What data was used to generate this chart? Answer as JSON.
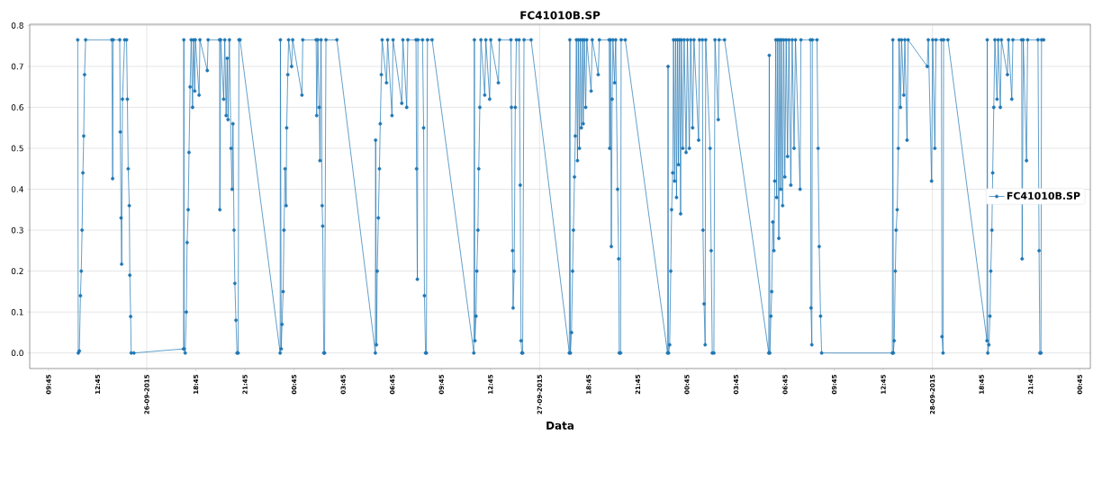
{
  "chart_data": {
    "type": "line",
    "title": "FC41010B.SP",
    "xlabel": "Data",
    "xlim": [
      "2015-09-26T08:36",
      "2015-09-29T01:24"
    ],
    "ylim": [
      -0.038,
      0.803
    ],
    "xticks": [
      {
        "value": "2015-09-26T09:45",
        "label": "09:45"
      },
      {
        "value": "2015-09-26T12:45",
        "label": "12:45"
      },
      {
        "value": "2015-09-26T15:45",
        "label": "26-09-2015"
      },
      {
        "value": "2015-09-26T18:45",
        "label": "18:45"
      },
      {
        "value": "2015-09-26T21:45",
        "label": "21:45"
      },
      {
        "value": "2015-09-27T00:45",
        "label": "00:45"
      },
      {
        "value": "2015-09-27T03:45",
        "label": "03:45"
      },
      {
        "value": "2015-09-27T06:45",
        "label": "06:45"
      },
      {
        "value": "2015-09-27T09:45",
        "label": "09:45"
      },
      {
        "value": "2015-09-27T12:45",
        "label": "12:45"
      },
      {
        "value": "2015-09-27T15:45",
        "label": "27-09-2015"
      },
      {
        "value": "2015-09-27T18:45",
        "label": "18:45"
      },
      {
        "value": "2015-09-27T21:45",
        "label": "21:45"
      },
      {
        "value": "2015-09-28T00:45",
        "label": "00:45"
      },
      {
        "value": "2015-09-28T03:45",
        "label": "03:45"
      },
      {
        "value": "2015-09-28T06:45",
        "label": "06:45"
      },
      {
        "value": "2015-09-28T09:45",
        "label": "09:45"
      },
      {
        "value": "2015-09-28T12:45",
        "label": "12:45"
      },
      {
        "value": "2015-09-28T15:45",
        "label": "28-09-2015"
      },
      {
        "value": "2015-09-28T18:45",
        "label": "18:45"
      },
      {
        "value": "2015-09-28T21:45",
        "label": "21:45"
      },
      {
        "value": "2015-09-29T00:45",
        "label": "00:45"
      }
    ],
    "yticks": [
      {
        "value": 0,
        "label": "0.0"
      },
      {
        "value": 0.1,
        "label": "0.1"
      },
      {
        "value": 0.2,
        "label": "0.2"
      },
      {
        "value": 0.3,
        "label": "0.3"
      },
      {
        "value": 0.4,
        "label": "0.4"
      },
      {
        "value": 0.5,
        "label": "0.5"
      },
      {
        "value": 0.6,
        "label": "0.6"
      },
      {
        "value": 0.7,
        "label": "0.7"
      },
      {
        "value": 0.8,
        "label": "0.8"
      }
    ],
    "grid": true,
    "legend": "right",
    "marker": "circle",
    "line_style": "solid",
    "x": [
      "2015-09-26T11:32",
      "2015-09-26T11:34",
      "2015-09-26T11:38",
      "2015-09-26T11:42",
      "2015-09-26T11:45",
      "2015-09-26T11:48",
      "2015-09-26T11:51",
      "2015-09-26T11:54",
      "2015-09-26T11:57",
      "2015-09-26T12:01",
      "2015-09-26T13:37",
      "2015-09-26T13:40",
      "2015-09-26T13:42",
      "2015-09-26T14:06",
      "2015-09-26T14:08",
      "2015-09-26T14:11",
      "2015-09-26T14:13",
      "2015-09-26T14:16",
      "2015-09-26T14:24",
      "2015-09-26T14:31",
      "2015-09-26T14:34",
      "2015-09-26T14:37",
      "2015-09-26T14:41",
      "2015-09-26T14:43",
      "2015-09-26T14:46",
      "2015-09-26T14:48",
      "2015-09-26T14:58",
      "2015-09-26T18:00",
      "2015-09-26T18:01",
      "2015-09-26T18:02",
      "2015-09-26T18:06",
      "2015-09-26T18:10",
      "2015-09-26T18:13",
      "2015-09-26T18:17",
      "2015-09-26T18:20",
      "2015-09-26T18:24",
      "2015-09-26T18:28",
      "2015-09-26T18:33",
      "2015-09-26T18:36",
      "2015-09-26T18:41",
      "2015-09-26T18:43",
      "2015-09-26T18:57",
      "2015-09-26T19:00",
      "2015-09-26T19:27",
      "2015-09-26T19:30",
      "2015-09-26T20:12",
      "2015-09-26T20:13",
      "2015-09-26T20:16",
      "2015-09-26T20:27",
      "2015-09-26T20:31",
      "2015-09-26T20:36",
      "2015-09-26T20:40",
      "2015-09-26T20:43",
      "2015-09-26T20:48",
      "2015-09-26T20:54",
      "2015-09-26T20:58",
      "2015-09-26T21:01",
      "2015-09-26T21:05",
      "2015-09-26T21:08",
      "2015-09-26T21:12",
      "2015-09-26T21:16",
      "2015-09-26T21:20",
      "2015-09-26T21:23",
      "2015-09-26T21:27",
      "2015-09-26T23:54",
      "2015-09-26T23:55",
      "2015-09-26T23:58",
      "2015-09-27T00:01",
      "2015-09-27T00:05",
      "2015-09-27T00:08",
      "2015-09-27T00:12",
      "2015-09-27T00:16",
      "2015-09-27T00:18",
      "2015-09-27T00:22",
      "2015-09-27T00:25",
      "2015-09-27T00:36",
      "2015-09-27T00:40",
      "2015-09-27T01:14",
      "2015-09-27T01:17",
      "2015-09-27T02:06",
      "2015-09-27T02:08",
      "2015-09-27T02:12",
      "2015-09-27T02:17",
      "2015-09-27T02:20",
      "2015-09-27T02:24",
      "2015-09-27T02:28",
      "2015-09-27T02:30",
      "2015-09-27T02:34",
      "2015-09-27T02:37",
      "2015-09-27T02:42",
      "2015-09-27T03:22",
      "2015-09-27T05:43",
      "2015-09-27T05:44",
      "2015-09-27T05:47",
      "2015-09-27T05:50",
      "2015-09-27T05:54",
      "2015-09-27T05:58",
      "2015-09-27T06:01",
      "2015-09-27T06:05",
      "2015-09-27T06:08",
      "2015-09-27T06:24",
      "2015-09-27T06:28",
      "2015-09-27T06:44",
      "2015-09-27T06:48",
      "2015-09-27T07:20",
      "2015-09-27T07:24",
      "2015-09-27T07:38",
      "2015-09-27T07:42",
      "2015-09-27T08:12",
      "2015-09-27T08:14",
      "2015-09-27T08:17",
      "2015-09-27T08:19",
      "2015-09-27T08:36",
      "2015-09-27T08:40",
      "2015-09-27T08:43",
      "2015-09-27T08:47",
      "2015-09-27T08:50",
      "2015-09-27T08:54",
      "2015-09-27T09:11",
      "2015-09-27T11:44",
      "2015-09-27T11:46",
      "2015-09-27T11:48",
      "2015-09-27T11:52",
      "2015-09-27T11:55",
      "2015-09-27T11:59",
      "2015-09-27T12:02",
      "2015-09-27T12:06",
      "2015-09-27T12:10",
      "2015-09-27T12:24",
      "2015-09-27T12:28",
      "2015-09-27T12:42",
      "2015-09-27T12:46",
      "2015-09-27T13:14",
      "2015-09-27T13:18",
      "2015-09-27T14:00",
      "2015-09-27T14:02",
      "2015-09-27T14:06",
      "2015-09-27T14:08",
      "2015-09-27T14:12",
      "2015-09-27T14:16",
      "2015-09-27T14:20",
      "2015-09-27T14:30",
      "2015-09-27T14:34",
      "2015-09-27T14:37",
      "2015-09-27T14:40",
      "2015-09-27T14:43",
      "2015-09-27T14:48",
      "2015-09-27T15:14",
      "2015-09-27T17:34",
      "2015-09-27T17:36",
      "2015-09-27T17:38",
      "2015-09-27T17:42",
      "2015-09-27T17:46",
      "2015-09-27T17:49",
      "2015-09-27T17:53",
      "2015-09-27T17:56",
      "2015-09-27T18:00",
      "2015-09-27T18:04",
      "2015-09-27T18:07",
      "2015-09-27T18:11",
      "2015-09-27T18:14",
      "2015-09-27T18:18",
      "2015-09-27T18:22",
      "2015-09-27T18:25",
      "2015-09-27T18:29",
      "2015-09-27T18:34",
      "2015-09-27T18:38",
      "2015-09-27T18:54",
      "2015-09-27T18:58",
      "2015-09-27T19:20",
      "2015-09-27T19:24",
      "2015-09-27T20:00",
      "2015-09-27T20:02",
      "2015-09-27T20:05",
      "2015-09-27T20:08",
      "2015-09-27T20:11",
      "2015-09-27T20:14",
      "2015-09-27T20:20",
      "2015-09-27T20:24",
      "2015-09-27T20:31",
      "2015-09-27T20:35",
      "2015-09-27T20:37",
      "2015-09-27T20:42",
      "2015-09-27T20:44",
      "2015-09-27T20:59",
      "2015-09-27T23:34",
      "2015-09-27T23:36",
      "2015-09-27T23:38",
      "2015-09-27T23:42",
      "2015-09-27T23:46",
      "2015-09-27T23:49",
      "2015-09-27T23:53",
      "2015-09-27T23:56",
      "2015-09-28T00:00",
      "2015-09-28T00:04",
      "2015-09-28T00:07",
      "2015-09-28T00:11",
      "2015-09-28T00:14",
      "2015-09-28T00:18",
      "2015-09-28T00:22",
      "2015-09-28T00:25",
      "2015-09-28T00:30",
      "2015-09-28T00:35",
      "2015-09-28T00:42",
      "2015-09-28T00:47",
      "2015-09-28T00:54",
      "2015-09-28T00:59",
      "2015-09-28T01:06",
      "2015-09-28T01:11",
      "2015-09-28T01:28",
      "2015-09-28T01:31",
      "2015-09-28T01:42",
      "2015-09-28T01:44",
      "2015-09-28T01:48",
      "2015-09-28T01:52",
      "2015-09-28T01:54",
      "2015-09-28T02:10",
      "2015-09-28T02:14",
      "2015-09-28T02:18",
      "2015-09-28T02:24",
      "2015-09-28T02:28",
      "2015-09-28T02:40",
      "2015-09-28T02:43",
      "2015-09-28T03:03",
      "2015-09-28T05:45",
      "2015-09-28T05:47",
      "2015-09-28T05:49",
      "2015-09-28T05:53",
      "2015-09-28T05:56",
      "2015-09-28T06:00",
      "2015-09-28T06:04",
      "2015-09-28T06:07",
      "2015-09-28T06:11",
      "2015-09-28T06:14",
      "2015-09-28T06:18",
      "2015-09-28T06:22",
      "2015-09-28T06:25",
      "2015-09-28T06:29",
      "2015-09-28T06:32",
      "2015-09-28T06:36",
      "2015-09-28T06:40",
      "2015-09-28T06:44",
      "2015-09-28T06:49",
      "2015-09-28T06:54",
      "2015-09-28T06:59",
      "2015-09-28T07:06",
      "2015-09-28T07:11",
      "2015-09-28T07:18",
      "2015-09-28T07:23",
      "2015-09-28T07:40",
      "2015-09-28T07:43",
      "2015-09-28T08:18",
      "2015-09-28T08:20",
      "2015-09-28T08:23",
      "2015-09-28T08:25",
      "2015-09-28T08:42",
      "2015-09-28T08:46",
      "2015-09-28T08:50",
      "2015-09-28T08:55",
      "2015-09-28T08:59",
      "2015-09-28T13:18",
      "2015-09-28T13:20",
      "2015-09-28T13:22",
      "2015-09-28T13:25",
      "2015-09-28T13:29",
      "2015-09-28T13:32",
      "2015-09-28T13:36",
      "2015-09-28T13:40",
      "2015-09-28T13:43",
      "2015-09-28T13:48",
      "2015-09-28T13:52",
      "2015-09-28T14:00",
      "2015-09-28T14:04",
      "2015-09-28T14:12",
      "2015-09-28T14:16",
      "2015-09-28T15:26",
      "2015-09-28T15:30",
      "2015-09-28T15:42",
      "2015-09-28T15:46",
      "2015-09-28T15:54",
      "2015-09-28T15:58",
      "2015-09-28T16:18",
      "2015-09-28T16:20",
      "2015-09-28T16:24",
      "2015-09-28T16:26",
      "2015-09-28T16:42",
      "2015-09-28T19:05",
      "2015-09-28T19:06",
      "2015-09-28T19:08",
      "2015-09-28T19:12",
      "2015-09-28T19:16",
      "2015-09-28T19:19",
      "2015-09-28T19:23",
      "2015-09-28T19:26",
      "2015-09-28T19:30",
      "2015-09-28T19:34",
      "2015-09-28T19:42",
      "2015-09-28T19:46",
      "2015-09-28T19:54",
      "2015-09-28T19:58",
      "2015-09-28T20:20",
      "2015-09-28T20:24",
      "2015-09-28T20:36",
      "2015-09-28T20:40",
      "2015-09-28T21:12",
      "2015-09-28T21:14",
      "2015-09-28T21:18",
      "2015-09-28T21:30",
      "2015-09-28T21:34",
      "2015-09-28T22:12",
      "2015-09-28T22:16",
      "2015-09-28T22:19",
      "2015-09-28T22:23",
      "2015-09-28T22:25",
      "2015-09-28T22:33"
    ],
    "series": [
      {
        "name": "FC41010B.SP",
        "color": "#1f77b4",
        "values": [
          0.765,
          0,
          0.005,
          0.14,
          0.2,
          0.3,
          0.44,
          0.53,
          0.68,
          0.765,
          0.765,
          0.426,
          0.765,
          0.765,
          0.54,
          0.33,
          0.217,
          0.62,
          0.765,
          0.765,
          0.62,
          0.45,
          0.36,
          0.19,
          0.089,
          0,
          0,
          0.01,
          0.765,
          0.01,
          0,
          0.1,
          0.27,
          0.35,
          0.49,
          0.65,
          0.765,
          0.6,
          0.765,
          0.64,
          0.765,
          0.63,
          0.765,
          0.69,
          0.765,
          0.765,
          0.35,
          0.765,
          0.62,
          0.765,
          0.58,
          0.72,
          0.57,
          0.765,
          0.5,
          0.4,
          0.56,
          0.3,
          0.17,
          0.08,
          0,
          0,
          0.765,
          0.765,
          0,
          0.765,
          0.01,
          0.07,
          0.15,
          0.3,
          0.45,
          0.36,
          0.55,
          0.68,
          0.765,
          0.7,
          0.765,
          0.63,
          0.765,
          0.765,
          0.58,
          0.765,
          0.6,
          0.47,
          0.765,
          0.36,
          0.31,
          0,
          0,
          0.765,
          0.765,
          0,
          0.52,
          0.02,
          0.2,
          0.33,
          0.45,
          0.56,
          0.68,
          0.765,
          0.66,
          0.765,
          0.58,
          0.765,
          0.61,
          0.765,
          0.6,
          0.765,
          0.765,
          0.45,
          0.18,
          0.765,
          0.765,
          0.55,
          0.14,
          0,
          0,
          0.765,
          0.765,
          0,
          0.765,
          0.03,
          0.09,
          0.2,
          0.3,
          0.45,
          0.6,
          0.765,
          0.63,
          0.765,
          0.62,
          0.765,
          0.66,
          0.765,
          0.765,
          0.6,
          0.25,
          0.11,
          0.2,
          0.6,
          0.765,
          0.765,
          0.41,
          0.03,
          0,
          0,
          0.765,
          0.765,
          0,
          0.765,
          0,
          0.05,
          0.2,
          0.3,
          0.43,
          0.53,
          0.765,
          0.47,
          0.765,
          0.5,
          0.765,
          0.55,
          0.765,
          0.56,
          0.765,
          0.6,
          0.765,
          0.64,
          0.765,
          0.68,
          0.765,
          0.765,
          0.5,
          0.765,
          0.26,
          0.62,
          0.765,
          0.66,
          0.765,
          0.4,
          0.23,
          0,
          0,
          0.765,
          0.765,
          0,
          0.7,
          0,
          0.02,
          0.2,
          0.35,
          0.44,
          0.765,
          0.42,
          0.765,
          0.38,
          0.765,
          0.46,
          0.765,
          0.34,
          0.765,
          0.5,
          0.765,
          0.49,
          0.765,
          0.5,
          0.765,
          0.55,
          0.765,
          0.52,
          0.765,
          0.765,
          0.3,
          0.12,
          0.02,
          0.765,
          0.5,
          0.25,
          0,
          0,
          0.765,
          0.57,
          0.765,
          0.765,
          0,
          0.727,
          0,
          0.09,
          0.15,
          0.32,
          0.25,
          0.42,
          0.765,
          0.38,
          0.765,
          0.28,
          0.765,
          0.4,
          0.765,
          0.36,
          0.765,
          0.43,
          0.765,
          0.48,
          0.765,
          0.41,
          0.765,
          0.5,
          0.765,
          0.4,
          0.765,
          0.765,
          0.11,
          0.02,
          0.765,
          0.765,
          0.5,
          0.26,
          0.09,
          0,
          0,
          0.765,
          0,
          0.03,
          0.2,
          0.3,
          0.35,
          0.5,
          0.765,
          0.6,
          0.765,
          0.63,
          0.765,
          0.52,
          0.765,
          0.7,
          0.765,
          0.42,
          0.765,
          0.5,
          0.765,
          0.765,
          0.04,
          0,
          0.765,
          0.765,
          0.03,
          0.765,
          0,
          0.02,
          0.09,
          0.2,
          0.3,
          0.44,
          0.6,
          0.765,
          0.62,
          0.765,
          0.6,
          0.765,
          0.68,
          0.765,
          0.62,
          0.765,
          0.765,
          0.23,
          0.765,
          0.47,
          0.765,
          0.765,
          0.25,
          0,
          0,
          0.765,
          0.765
        ]
      }
    ]
  }
}
